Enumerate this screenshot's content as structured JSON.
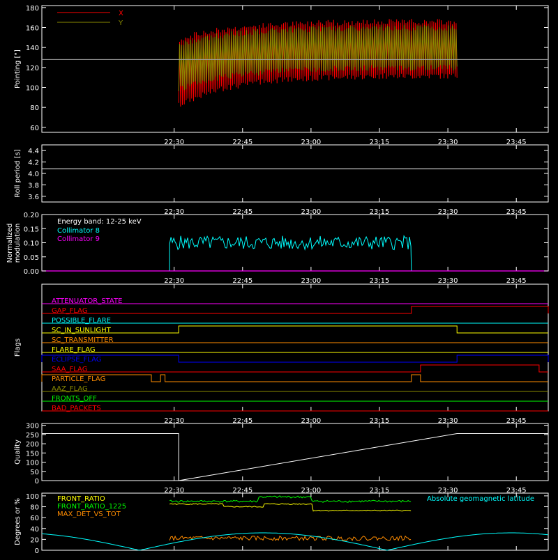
{
  "time_ticks": [
    "22:30",
    "22:45",
    "23:00",
    "23:15",
    "23:30",
    "23:45"
  ],
  "colors": {
    "axis": "#ffffff",
    "red": "#ff0000",
    "olive": "#8a8a00",
    "cyan": "#00ffff",
    "magenta": "#ff00ff",
    "yellow": "#ffff00",
    "green": "#00ff00",
    "orange": "#ff8c00",
    "blue": "#0000ff",
    "gray": "#a0a0a0"
  },
  "chart_data": [
    {
      "type": "line",
      "ylabel": "Pointing [\"]",
      "ylim": [
        55,
        182
      ],
      "yticks": [
        "60",
        "80",
        "100",
        "120",
        "140",
        "160",
        "180"
      ],
      "series": [
        {
          "name": "X",
          "color": "red",
          "upper_start": 148,
          "upper_end": 166,
          "lower_start": 82,
          "lower_end": 112
        },
        {
          "name": "Y",
          "color": "olive",
          "upper_start": 143,
          "upper_end": 160,
          "lower_start": 98,
          "lower_end": 120
        }
      ],
      "data_window": [
        "22:31",
        "23:32"
      ],
      "reference_line": 128
    },
    {
      "type": "line",
      "ylabel": "Roll period [s]",
      "ylim": [
        3.5,
        4.5
      ],
      "yticks": [
        "3.6",
        "3.8",
        "4.0",
        "4.2",
        "4.4"
      ],
      "value": 4.08
    },
    {
      "type": "line",
      "ylabel_lines": [
        "Normalized",
        "modulation"
      ],
      "ylim": [
        0,
        0.2
      ],
      "yticks": [
        "0.00",
        "0.05",
        "0.10",
        "0.15",
        "0.20"
      ],
      "legend_title": "Energy band: 12-25 keV",
      "series": [
        {
          "name": "Collimator 8",
          "color": "cyan",
          "mean": 0.1,
          "window": [
            "22:29",
            "23:22"
          ]
        },
        {
          "name": "Collimator 9",
          "color": "magenta",
          "mean": 0.0
        }
      ]
    },
    {
      "type": "line",
      "ylabel": "Flags",
      "flags": [
        {
          "name": "ATTENUATOR_STATE",
          "color": "magenta"
        },
        {
          "name": "GAP_FLAG",
          "color": "red",
          "on": [
            [
              "23:22",
              "23:52"
            ]
          ]
        },
        {
          "name": "POSSIBLE_FLARE",
          "color": "cyan"
        },
        {
          "name": "SC_IN_SUNLIGHT",
          "color": "yellow",
          "on": [
            [
              "22:31",
              "23:32"
            ]
          ]
        },
        {
          "name": "SC_TRANSMITTER",
          "color": "orange"
        },
        {
          "name": "FLARE_FLAG",
          "color": "yellow"
        },
        {
          "name": "ECLIPSE_FLAG",
          "color": "blue",
          "on": [
            [
              "22:01",
              "22:31"
            ],
            [
              "23:32",
              "23:52"
            ]
          ]
        },
        {
          "name": "SAA_FLAG",
          "color": "red",
          "on": [
            [
              "23:24",
              "23:50"
            ]
          ]
        },
        {
          "name": "PARTICLE_FLAG",
          "color": "orange",
          "on": [
            [
              "22:01",
              "22:25"
            ],
            [
              "22:27",
              "22:28"
            ],
            [
              "23:22",
              "23:24"
            ]
          ]
        },
        {
          "name": "AAZ_FLAG",
          "color": "olive"
        },
        {
          "name": "FRONTS_OFF",
          "color": "green"
        },
        {
          "name": "BAD_PACKETS",
          "color": "red"
        }
      ]
    },
    {
      "type": "line",
      "ylabel": "Quality",
      "ylim": [
        0,
        310
      ],
      "yticks": [
        "0",
        "50",
        "100",
        "150",
        "200",
        "250",
        "300"
      ],
      "segments": [
        [
          "22:01",
          "22:31",
          255
        ],
        [
          "23:32",
          "23:52",
          255
        ]
      ]
    },
    {
      "type": "line",
      "ylabel": "Degrees or %",
      "ylim": [
        0,
        105
      ],
      "yticks": [
        "0",
        "20",
        "40",
        "60",
        "80",
        "100"
      ],
      "series": [
        {
          "name": "FRONT_RATIO",
          "color": "yellow"
        },
        {
          "name": "FRONT_RATIO_1225",
          "color": "green"
        },
        {
          "name": "MAX_DET_VS_TOT",
          "color": "orange"
        },
        {
          "name": "Absolute geomagnetic latitude",
          "color": "cyan"
        }
      ]
    }
  ]
}
